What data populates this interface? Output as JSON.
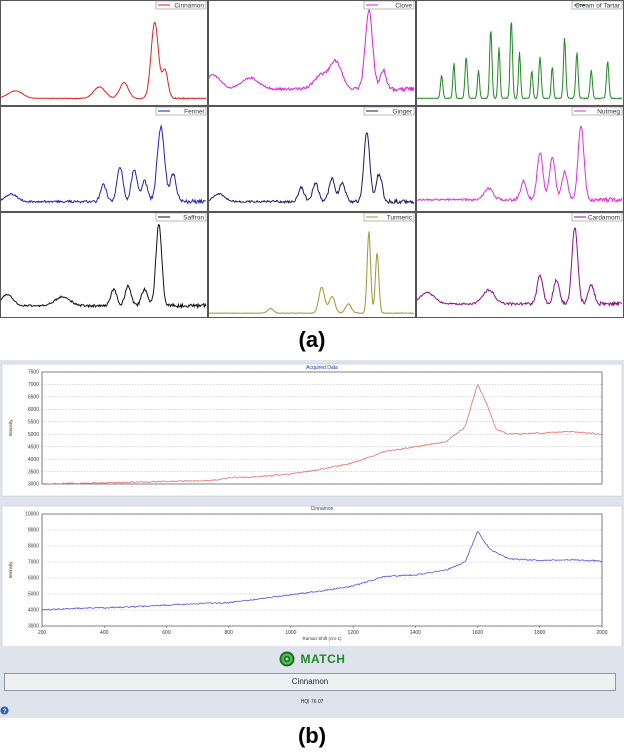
{
  "chart_data": [
    {
      "type": "line",
      "layout": "grid-3x3",
      "caption": "(a)",
      "spectra": [
        {
          "name": "Cinnamon",
          "color": "#dd2222",
          "peaks": [
            [
              0.07,
              0.08,
              0.05
            ],
            [
              0.48,
              0.12,
              0.04
            ],
            [
              0.6,
              0.17,
              0.03
            ],
            [
              0.75,
              0.82,
              0.025
            ],
            [
              0.8,
              0.3,
              0.02
            ]
          ],
          "noise": 0.01,
          "base": 0.05,
          "slope": 0.0
        },
        {
          "name": "Clove",
          "color": "#dd22dd",
          "peaks": [
            [
              0.02,
              0.15,
              0.05
            ],
            [
              0.2,
              0.12,
              0.06
            ],
            [
              0.55,
              0.15,
              0.05
            ],
            [
              0.62,
              0.28,
              0.04
            ],
            [
              0.78,
              0.85,
              0.025
            ],
            [
              0.85,
              0.2,
              0.02
            ]
          ],
          "noise": 0.03,
          "base": 0.15,
          "slope": 0.0
        },
        {
          "name": "Cream of Tartar",
          "color": "#228822",
          "peaks": [
            [
              0.12,
              0.25,
              0.008
            ],
            [
              0.18,
              0.38,
              0.007
            ],
            [
              0.24,
              0.45,
              0.008
            ],
            [
              0.3,
              0.3,
              0.007
            ],
            [
              0.36,
              0.75,
              0.008
            ],
            [
              0.4,
              0.55,
              0.007
            ],
            [
              0.46,
              0.85,
              0.008
            ],
            [
              0.5,
              0.5,
              0.007
            ],
            [
              0.56,
              0.3,
              0.007
            ],
            [
              0.6,
              0.45,
              0.008
            ],
            [
              0.66,
              0.35,
              0.007
            ],
            [
              0.72,
              0.65,
              0.008
            ],
            [
              0.78,
              0.5,
              0.008
            ],
            [
              0.85,
              0.3,
              0.008
            ],
            [
              0.93,
              0.4,
              0.008
            ]
          ],
          "noise": 0.01,
          "base": 0.05,
          "slope": 0.0
        },
        {
          "name": "Fennel",
          "color": "#2222bb",
          "peaks": [
            [
              0.05,
              0.08,
              0.04
            ],
            [
              0.5,
              0.18,
              0.02
            ],
            [
              0.58,
              0.38,
              0.02
            ],
            [
              0.65,
              0.35,
              0.02
            ],
            [
              0.7,
              0.22,
              0.02
            ],
            [
              0.78,
              0.8,
              0.025
            ],
            [
              0.84,
              0.3,
              0.02
            ]
          ],
          "noise": 0.03,
          "base": 0.08,
          "slope": 0.0
        },
        {
          "name": "Ginger",
          "color": "#1a1a66",
          "peaks": [
            [
              0.05,
              0.08,
              0.04
            ],
            [
              0.45,
              0.15,
              0.02
            ],
            [
              0.52,
              0.2,
              0.02
            ],
            [
              0.6,
              0.25,
              0.02
            ],
            [
              0.65,
              0.2,
              0.02
            ],
            [
              0.77,
              0.75,
              0.02
            ],
            [
              0.83,
              0.3,
              0.02
            ]
          ],
          "noise": 0.03,
          "base": 0.08,
          "slope": 0.0
        },
        {
          "name": "Nutmeg",
          "color": "#dd33dd",
          "peaks": [
            [
              0.35,
              0.12,
              0.03
            ],
            [
              0.52,
              0.2,
              0.02
            ],
            [
              0.6,
              0.5,
              0.02
            ],
            [
              0.66,
              0.45,
              0.02
            ],
            [
              0.72,
              0.3,
              0.02
            ],
            [
              0.8,
              0.8,
              0.02
            ]
          ],
          "noise": 0.035,
          "base": 0.1,
          "slope": 0.0
        },
        {
          "name": "Saffron",
          "color": "#111111",
          "peaks": [
            [
              0.03,
              0.12,
              0.04
            ],
            [
              0.3,
              0.1,
              0.05
            ],
            [
              0.55,
              0.18,
              0.02
            ],
            [
              0.62,
              0.22,
              0.02
            ],
            [
              0.7,
              0.18,
              0.02
            ],
            [
              0.77,
              0.88,
              0.02
            ]
          ],
          "noise": 0.03,
          "base": 0.1,
          "slope": 0.0
        },
        {
          "name": "Turmeric",
          "color": "#999933",
          "peaks": [
            [
              0.3,
              0.05,
              0.02
            ],
            [
              0.55,
              0.28,
              0.02
            ],
            [
              0.6,
              0.18,
              0.02
            ],
            [
              0.68,
              0.1,
              0.02
            ],
            [
              0.78,
              0.88,
              0.012
            ],
            [
              0.82,
              0.65,
              0.012
            ]
          ],
          "noise": 0.005,
          "base": 0.02,
          "slope": 0.0
        },
        {
          "name": "Cardamom",
          "color": "#881188",
          "peaks": [
            [
              0.05,
              0.12,
              0.05
            ],
            [
              0.35,
              0.15,
              0.04
            ],
            [
              0.6,
              0.3,
              0.02
            ],
            [
              0.68,
              0.25,
              0.02
            ],
            [
              0.77,
              0.82,
              0.02
            ],
            [
              0.85,
              0.2,
              0.02
            ]
          ],
          "noise": 0.03,
          "base": 0.12,
          "slope": 0.0
        }
      ]
    },
    {
      "type": "line",
      "caption": "(b)",
      "title": "Acquired Data",
      "ylabel": "Intensity",
      "ylim": [
        3000,
        7500
      ],
      "yticks": [
        3000,
        3500,
        4000,
        4500,
        5000,
        5500,
        6000,
        6500,
        7000,
        7500
      ],
      "xlim": [
        200,
        2000
      ],
      "color": "#e07070",
      "series": [
        {
          "x": [
            200,
            400,
            600,
            760,
            800,
            900,
            1000,
            1100,
            1200,
            1300,
            1400,
            1500,
            1560,
            1600,
            1630,
            1660,
            1700,
            1800,
            1900,
            2000
          ],
          "y": [
            3000,
            3050,
            3100,
            3150,
            3250,
            3300,
            3400,
            3600,
            3850,
            4300,
            4500,
            4700,
            5300,
            7000,
            6200,
            5200,
            5000,
            5050,
            5100,
            5000
          ]
        }
      ]
    },
    {
      "type": "line",
      "title": "Cinnamon",
      "ylabel": "Intensity",
      "xlabel": "Raman Shift (cm-1)",
      "ylim": [
        3000,
        10000
      ],
      "yticks": [
        3000,
        4000,
        5000,
        6000,
        7000,
        8000,
        9000,
        10000
      ],
      "xlim": [
        200,
        2000
      ],
      "xticks": [
        200,
        400,
        600,
        800,
        1000,
        1200,
        1400,
        1600,
        1800,
        2000
      ],
      "color": "#5555cc",
      "series": [
        {
          "x": [
            200,
            300,
            400,
            500,
            600,
            700,
            800,
            900,
            1000,
            1100,
            1200,
            1300,
            1400,
            1500,
            1560,
            1600,
            1640,
            1700,
            1800,
            1900,
            2000
          ],
          "y": [
            4000,
            4100,
            4150,
            4200,
            4300,
            4400,
            4450,
            4700,
            4950,
            5200,
            5500,
            6100,
            6200,
            6500,
            7000,
            8900,
            7800,
            7200,
            7100,
            7150,
            7050
          ]
        }
      ]
    }
  ],
  "result": {
    "match_label": "MATCH",
    "match_name": "Cinnamon",
    "hqi": "HQI 76.07"
  },
  "colors": {
    "match_green": "#1d8a2b",
    "panel_bg": "#dfe4ec"
  },
  "icons": {
    "match": "match-target-icon",
    "help": "help-icon"
  }
}
